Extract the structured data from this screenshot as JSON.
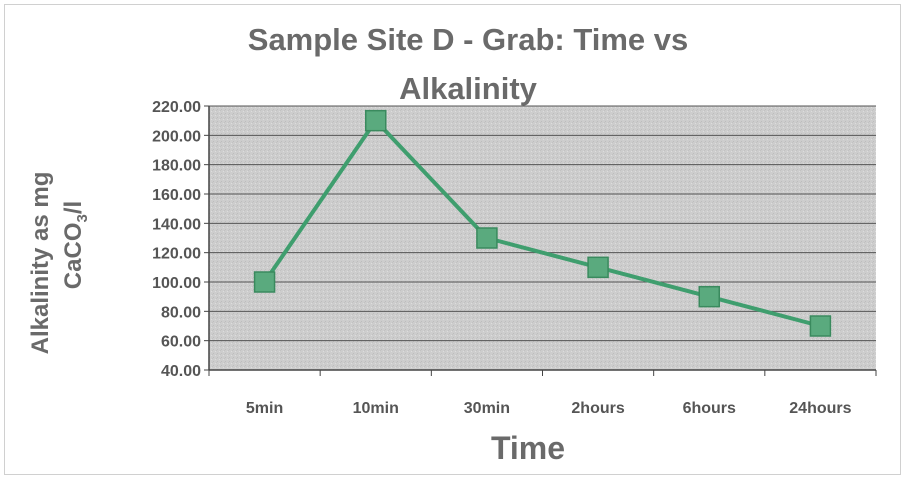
{
  "chart_data": {
    "type": "line",
    "title_line1": "Sample Site D - Grab: Time vs",
    "title_line2": "Alkalinity",
    "xlabel": "Time",
    "ylabel_line1": "Alkalinity as mg",
    "ylabel_line2": "CaCO",
    "ylabel_sub": "3",
    "ylabel_tail": "/l",
    "categories": [
      "5min",
      "10min",
      "30min",
      "2hours",
      "6hours",
      "24hours"
    ],
    "series": [
      {
        "values": [
          100,
          210,
          130,
          110,
          90,
          70
        ]
      }
    ],
    "ylim": [
      40,
      220
    ],
    "ytick_step": 20,
    "ytick_labels": [
      "40.00",
      "60.00",
      "80.00",
      "100.00",
      "120.00",
      "140.00",
      "160.00",
      "180.00",
      "200.00",
      "220.00"
    ],
    "grid": true,
    "legend": "none",
    "colors": {
      "line": "#3f9e6e",
      "marker": "#5aaa7e",
      "marker_edge": "#3a8a5e",
      "plot_bg": "#cfcfcf",
      "grid": "#555555"
    }
  }
}
